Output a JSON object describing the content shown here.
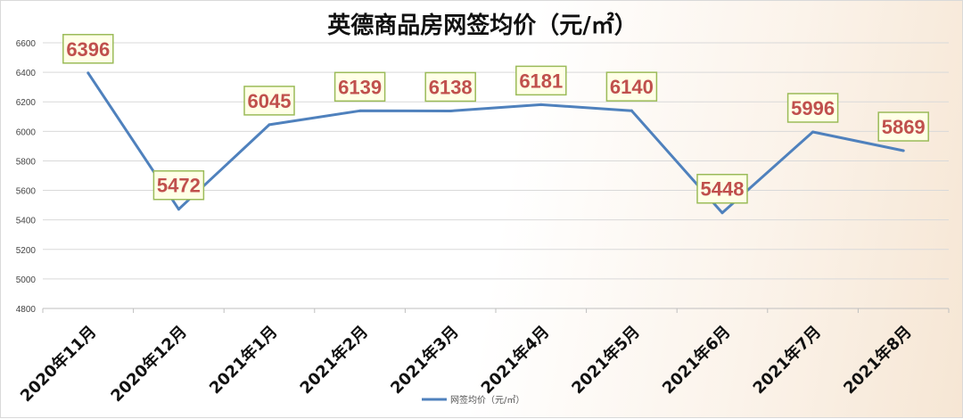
{
  "chart_data": {
    "type": "line",
    "title": "英德商品房网签均价（元/㎡）",
    "xlabel": "",
    "ylabel": "",
    "categories": [
      "2020年11月",
      "2020年12月",
      "2021年1月",
      "2021年2月",
      "2021年3月",
      "2021年4月",
      "2021年5月",
      "2021年6月",
      "2021年7月",
      "2021年8月"
    ],
    "series": [
      {
        "name": "网签均价（元/㎡）",
        "values": [
          6396,
          5472,
          6045,
          6139,
          6138,
          6181,
          6140,
          5448,
          5996,
          5869
        ]
      }
    ],
    "ylim": [
      4800,
      6600
    ],
    "yticks": [
      4800,
      5000,
      5200,
      5400,
      5600,
      5800,
      6000,
      6200,
      6400,
      6600
    ],
    "grid": true,
    "legend_position": "bottom",
    "colors": {
      "line": "#4f81bd",
      "label_text": "#c0504d",
      "label_box_fill": "#ffffe6",
      "label_box_border": "#9bbb59",
      "grid": "#d9d9d9"
    }
  }
}
